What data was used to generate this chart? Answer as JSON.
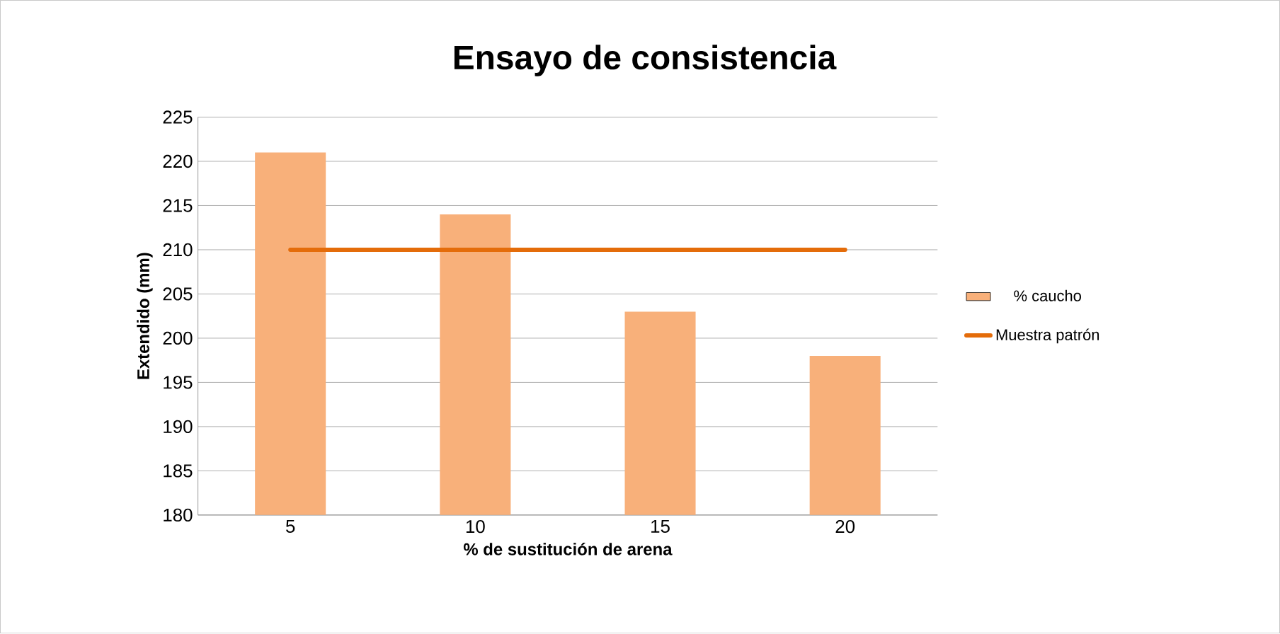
{
  "chart_data": {
    "type": "bar",
    "title": "Ensayo de consistencia",
    "xlabel": "% de sustitución de arena",
    "ylabel": "Extendido (mm)",
    "categories": [
      "5",
      "10",
      "15",
      "20"
    ],
    "series": [
      {
        "name": "% caucho",
        "color": "#f8b07a",
        "values": [
          221,
          214,
          203,
          198
        ]
      },
      {
        "name": "Muestra patrón",
        "type": "line",
        "color": "#e46c0a",
        "values": [
          210,
          210,
          210,
          210
        ]
      }
    ],
    "ylim": [
      180,
      225
    ],
    "yticks": [
      180,
      185,
      190,
      195,
      200,
      205,
      210,
      215,
      220,
      225
    ],
    "grid": "y",
    "legend": "right"
  }
}
